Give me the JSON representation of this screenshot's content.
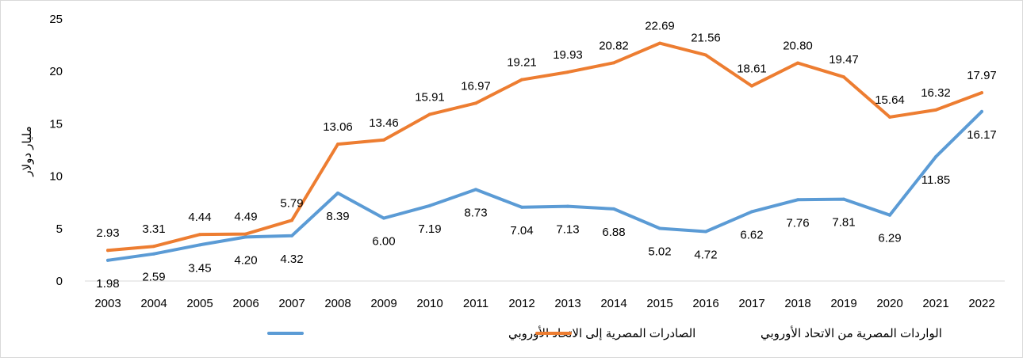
{
  "chart_data": {
    "type": "line",
    "title": "",
    "xlabel": "",
    "ylabel": "مليار دولار",
    "ylim": [
      0,
      25
    ],
    "yticks": [
      0,
      5,
      10,
      15,
      20,
      25
    ],
    "grid": false,
    "legend_position": "bottom",
    "x": [
      "2003",
      "2004",
      "2005",
      "2006",
      "2007",
      "2008",
      "2009",
      "2010",
      "2011",
      "2012",
      "2013",
      "2014",
      "2015",
      "2016",
      "2017",
      "2018",
      "2019",
      "2020",
      "2021",
      "2022"
    ],
    "series": [
      {
        "name": "الصادرات المصرية إلى الاتحاد الأوروبي",
        "color": "#5b9bd5",
        "values": [
          1.98,
          2.59,
          3.45,
          4.2,
          4.32,
          8.39,
          6.0,
          7.19,
          8.73,
          7.04,
          7.13,
          6.88,
          5.02,
          4.72,
          6.62,
          7.76,
          7.81,
          6.29,
          11.85,
          16.17
        ],
        "labels": [
          "1.98",
          "2.59",
          "3.45",
          "4.20",
          "4.32",
          "8.39",
          "6.00",
          "7.19",
          "8.73",
          "7.04",
          "7.13",
          "6.88",
          "5.02",
          "4.72",
          "6.62",
          "7.76",
          "7.81",
          "6.29",
          "11.85",
          "16.17"
        ]
      },
      {
        "name": "الواردات المصرية من الاتحاد الأوروبي",
        "color": "#ed7d31",
        "values": [
          2.93,
          3.31,
          4.44,
          4.49,
          5.79,
          13.06,
          13.46,
          15.91,
          16.97,
          19.21,
          19.93,
          20.82,
          22.69,
          21.56,
          18.61,
          20.8,
          19.47,
          15.64,
          16.32,
          17.97
        ],
        "labels": [
          "2.93",
          "3.31",
          "4.44",
          "4.49",
          "5.79",
          "13.06",
          "13.46",
          "15.91",
          "16.97",
          "19.21",
          "19.93",
          "20.82",
          "22.69",
          "21.56",
          "18.61",
          "20.80",
          "19.47",
          "15.64",
          "16.32",
          "17.97"
        ]
      }
    ]
  }
}
